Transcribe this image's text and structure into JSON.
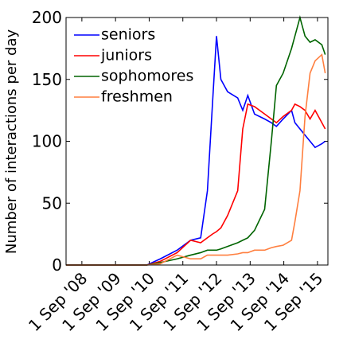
{
  "chart_data": {
    "type": "line",
    "ylabel": "Number of interactions per day",
    "x": [
      2008.2,
      2010.6,
      2011.0,
      2011.5,
      2011.9,
      2012.2,
      2012.4,
      2012.55,
      2012.67,
      2012.8,
      2013.0,
      2013.3,
      2013.45,
      2013.6,
      2013.8,
      2014.1,
      2014.3,
      2014.45,
      2014.65,
      2014.9,
      2015.0,
      2015.15,
      2015.3,
      2015.45,
      2015.6,
      2015.8,
      2015.9
    ],
    "series": [
      {
        "name": "seniors",
        "color": "#0000ff",
        "values": [
          0,
          0,
          5,
          12,
          20,
          22,
          60,
          130,
          185,
          150,
          140,
          135,
          125,
          137,
          122,
          118,
          115,
          112,
          118,
          125,
          115,
          110,
          105,
          100,
          95,
          98,
          100
        ]
      },
      {
        "name": "juniors",
        "color": "#ff0000",
        "values": [
          0,
          0,
          3,
          10,
          20,
          18,
          22,
          25,
          27,
          30,
          40,
          60,
          110,
          130,
          128,
          122,
          118,
          115,
          120,
          125,
          130,
          128,
          125,
          118,
          125,
          115,
          110
        ]
      },
      {
        "name": "sophomores",
        "color": "#006400",
        "values": [
          0,
          0,
          2,
          5,
          8,
          10,
          12,
          12,
          12,
          13,
          15,
          18,
          20,
          22,
          28,
          45,
          100,
          145,
          155,
          175,
          185,
          200,
          185,
          180,
          182,
          178,
          170
        ]
      },
      {
        "name": "freshmen",
        "color": "#ff7f3f",
        "values": [
          0,
          0,
          1,
          8,
          5,
          5,
          8,
          8,
          8,
          8,
          8,
          9,
          10,
          10,
          12,
          12,
          14,
          15,
          16,
          20,
          35,
          60,
          120,
          155,
          165,
          170,
          155
        ]
      }
    ],
    "xlim": [
      2008.2,
      2015.98
    ],
    "xticks": [
      {
        "value": 2008.67,
        "label": "1 Sep '08"
      },
      {
        "value": 2009.67,
        "label": "1 Sep '09"
      },
      {
        "value": 2010.67,
        "label": "1 Sep '10"
      },
      {
        "value": 2011.67,
        "label": "1 Sep '11"
      },
      {
        "value": 2012.67,
        "label": "1 Sep '12"
      },
      {
        "value": 2013.67,
        "label": "1 Sep '13"
      },
      {
        "value": 2014.67,
        "label": "1 Sep '14"
      },
      {
        "value": 2015.67,
        "label": "1 Sep '15"
      }
    ],
    "ylim": [
      0,
      200
    ],
    "yticks": [
      0,
      50,
      100,
      150,
      200
    ],
    "legend": "upper-left"
  }
}
